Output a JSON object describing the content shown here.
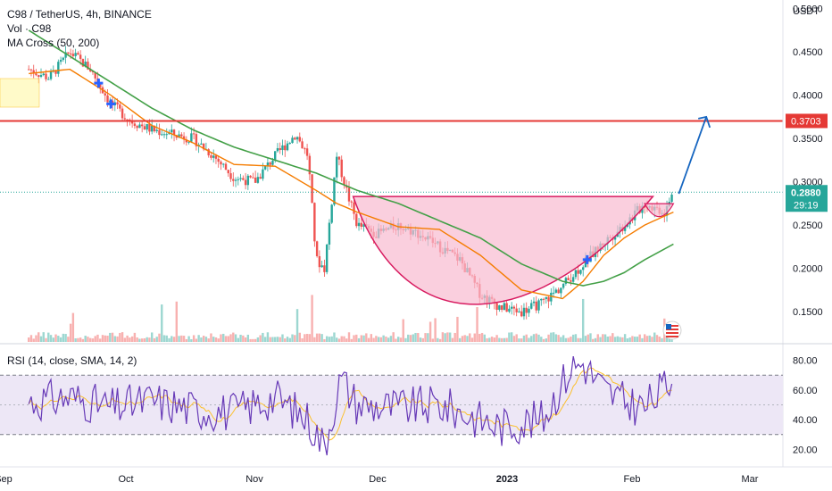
{
  "header": {
    "symbol_line": "C98 / TetherUS, 4h, BINANCE",
    "volume_line": "Vol · C98",
    "ma_line": "MA Cross (50, 200)"
  },
  "rsi_header": "RSI (14, close, SMA, 14, 2)",
  "currency": "USDT",
  "price_tags": {
    "resistance": "0.3703",
    "last": "0.2880",
    "countdown": "29:19"
  },
  "colors": {
    "up": "#26a69a",
    "down": "#ef5350",
    "ma_fast": "#f57c00",
    "ma_slow": "#43a047",
    "resistance": "#e53935",
    "cup_fill": "#f8bbd0",
    "cup_stroke": "#d81b60",
    "projection": "#1565c0",
    "rsi_line": "#673ab7",
    "rsi_sma": "#fbc02d",
    "rsi_band": "#ede7f6",
    "cross_marker": "#2962ff"
  },
  "icons": {
    "flag": "us-flag-icon"
  },
  "chart_data": [
    {
      "type": "candlestick",
      "title": "C98 / TetherUS, 4h, BINANCE",
      "ylabel": "USDT",
      "ylim": [
        0.115,
        0.51
      ],
      "y_ticks": [
        "0.5000",
        "0.4500",
        "0.4000",
        "0.3500",
        "0.3000",
        "0.2500",
        "0.2000",
        "0.1500"
      ],
      "y_tick_values": [
        0.5,
        0.45,
        0.4,
        0.35,
        0.3,
        0.25,
        0.2,
        0.15
      ],
      "x_ticks": [
        "Sep",
        "Oct",
        "Nov",
        "Dec",
        "2023",
        "Feb",
        "Mar"
      ],
      "price_path": {
        "days": [
          0,
          5,
          10,
          15,
          20,
          25,
          30,
          35,
          40,
          45,
          50,
          55,
          60,
          65,
          68,
          70,
          72,
          75,
          78,
          80,
          85,
          90,
          95,
          100,
          105,
          110,
          115,
          120,
          125,
          130,
          135,
          140,
          145,
          150,
          155,
          157
        ],
        "values": [
          0.43,
          0.42,
          0.45,
          0.43,
          0.39,
          0.37,
          0.36,
          0.355,
          0.35,
          0.33,
          0.305,
          0.3,
          0.33,
          0.355,
          0.33,
          0.21,
          0.2,
          0.33,
          0.28,
          0.25,
          0.24,
          0.25,
          0.24,
          0.225,
          0.21,
          0.17,
          0.155,
          0.15,
          0.16,
          0.18,
          0.205,
          0.23,
          0.25,
          0.275,
          0.265,
          0.288
        ]
      },
      "ma_fast_path": {
        "days": [
          0,
          10,
          20,
          30,
          40,
          50,
          60,
          70,
          75,
          80,
          90,
          100,
          110,
          120,
          130,
          135,
          140,
          145,
          150,
          157
        ],
        "values": [
          0.425,
          0.43,
          0.4,
          0.365,
          0.345,
          0.32,
          0.318,
          0.29,
          0.275,
          0.265,
          0.248,
          0.245,
          0.215,
          0.175,
          0.165,
          0.185,
          0.215,
          0.235,
          0.25,
          0.265
        ]
      },
      "ma_slow_path": {
        "days": [
          0,
          10,
          20,
          30,
          40,
          50,
          60,
          70,
          80,
          90,
          100,
          110,
          120,
          130,
          135,
          140,
          145,
          150,
          157
        ],
        "values": [
          0.475,
          0.445,
          0.415,
          0.385,
          0.36,
          0.34,
          0.325,
          0.31,
          0.29,
          0.275,
          0.255,
          0.235,
          0.205,
          0.185,
          0.18,
          0.185,
          0.195,
          0.21,
          0.228
        ]
      },
      "resistance_level": 0.3703,
      "last_price": 0.288,
      "cup": {
        "rim_price": 0.283,
        "bottom_price": 0.148,
        "start_day": 79,
        "end_day": 152
      },
      "handle": {
        "low": 0.255,
        "start_day": 150,
        "end_day": 157
      },
      "projection_target": 0.375,
      "ma_cross_marker_days": [
        17,
        20,
        136
      ]
    },
    {
      "type": "line",
      "title": "RSI (14, close, SMA, 14, 2)",
      "ylim": [
        10,
        90
      ],
      "y_ticks": [
        "80.00",
        "60.00",
        "40.00",
        "20.00"
      ],
      "y_tick_values": [
        80,
        60,
        40,
        20
      ],
      "bands": [
        70,
        50,
        30
      ],
      "series": [
        {
          "name": "RSI",
          "x": [
            0,
            10,
            20,
            30,
            40,
            50,
            60,
            68,
            72,
            76,
            80,
            90,
            100,
            110,
            115,
            120,
            125,
            130,
            132,
            135,
            140,
            145,
            150,
            157
          ],
          "values": [
            52,
            55,
            48,
            53,
            47,
            45,
            55,
            40,
            22,
            68,
            50,
            48,
            50,
            40,
            35,
            38,
            40,
            65,
            75,
            78,
            60,
            52,
            48,
            68
          ]
        }
      ]
    }
  ]
}
